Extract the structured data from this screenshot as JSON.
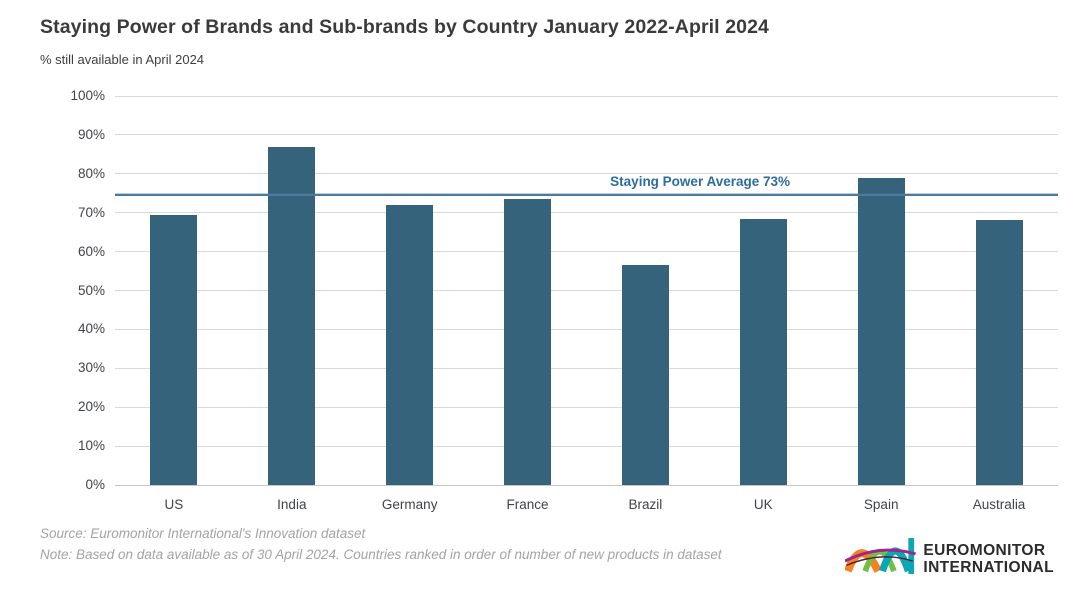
{
  "header": {
    "title": "Staying Power of Brands and Sub-brands by Country January 2022-April 2024",
    "subtitle": "% still available in April 2024"
  },
  "chart_data": {
    "type": "bar",
    "title": "Staying Power of Brands and Sub-brands by Country January 2022-April 2024",
    "subtitle": "% still available in April 2024",
    "categories": [
      "US",
      "India",
      "Germany",
      "France",
      "Brazil",
      "UK",
      "Spain",
      "Australia"
    ],
    "values": [
      69.5,
      87,
      72,
      73.5,
      56.5,
      68.5,
      79,
      68
    ],
    "unit": "%",
    "ylim": [
      0,
      100
    ],
    "ytick_step": 10,
    "ytick_labels": [
      "0%",
      "10%",
      "20%",
      "30%",
      "40%",
      "50%",
      "60%",
      "70%",
      "80%",
      "90%",
      "100%"
    ],
    "grid": "horizontal",
    "legend": "none",
    "average_line": {
      "label": "Staying Power Average 73%",
      "value": 73,
      "display_pct": 74.5
    },
    "colors": {
      "bar": "#35637c",
      "average_line": "#4d7a9c",
      "average_label": "#2e6c9e",
      "gridline": "#d9d9d9"
    }
  },
  "footer": {
    "source": "Source: Euromonitor International's Innovation dataset",
    "note": "Note: Based on data available as of 30 April 2024. Countries ranked in order of number of new products in dataset"
  },
  "logo": {
    "line1": "EUROMONITOR",
    "line2": "INTERNATIONAL",
    "colors": {
      "orange": "#f5821f",
      "green": "#71bf44",
      "teal": "#0aa7b5",
      "magenta": "#a3238e",
      "dark": "#4a2332"
    }
  }
}
